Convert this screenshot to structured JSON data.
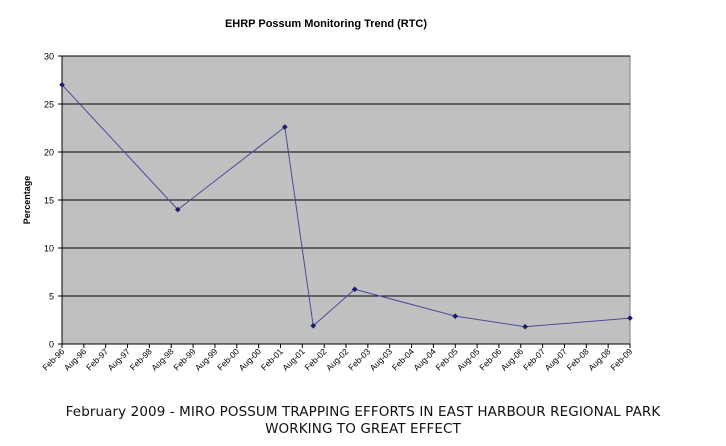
{
  "chart_data": {
    "type": "line",
    "title": "EHRP Possum Monitoring Trend (RTC)",
    "xlabel": "",
    "ylabel": "Percentage",
    "ylim": [
      0,
      30
    ],
    "yticks": [
      0,
      5,
      10,
      15,
      20,
      25,
      30
    ],
    "categories": [
      "Feb-96",
      "Aug-96",
      "Feb-97",
      "Aug-97",
      "Feb-98",
      "Aug-98",
      "Feb-99",
      "Aug-99",
      "Feb-00",
      "Aug-00",
      "Feb-01",
      "Aug-01",
      "Feb-02",
      "Aug-02",
      "Feb-03",
      "Aug-03",
      "Feb-04",
      "Aug-04",
      "Feb-05",
      "Aug-05",
      "Feb-06",
      "Aug-06",
      "Feb-07",
      "Aug-07",
      "Feb-08",
      "Aug-08",
      "Feb-09"
    ],
    "series": [
      {
        "points": [
          {
            "x": 0,
            "y": 27
          },
          {
            "x": 5.3,
            "y": 14
          },
          {
            "x": 10.2,
            "y": 22.6
          },
          {
            "x": 11.5,
            "y": 1.9
          },
          {
            "x": 13.4,
            "y": 5.7
          },
          {
            "x": 18.0,
            "y": 2.9
          },
          {
            "x": 21.2,
            "y": 1.8
          },
          {
            "x": 26.0,
            "y": 2.7
          }
        ]
      }
    ],
    "grid": true,
    "legend": "none",
    "colors": {
      "plot_background": "#c0c0c0",
      "gridline": "#000000",
      "line": "#4a4a9c",
      "marker": "#1a1a6e"
    }
  },
  "caption": {
    "line1": "February 2009 - MIRO POSSUM TRAPPING EFFORTS IN EAST HARBOUR REGIONAL PARK",
    "line2": "WORKING TO GREAT EFFECT"
  }
}
